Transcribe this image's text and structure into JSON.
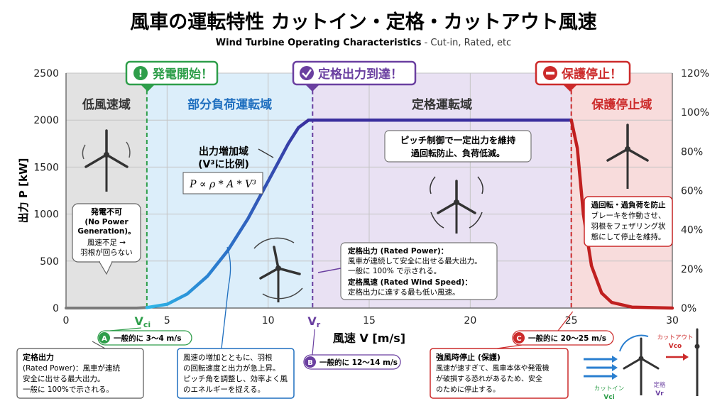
{
  "header": {
    "title": "風車の運転特性 カットイン・定格・カットアウト風速",
    "subtitle_bold": "Wind Turbine Operating Characteristics",
    "subtitle_rest": " - Cut-in, Rated, etc"
  },
  "chart_data": {
    "type": "line",
    "xlabel": "風速 V [m/s]",
    "ylabel": "出力 P [kW]",
    "xlim": [
      0,
      30
    ],
    "ylim": [
      0,
      2500
    ],
    "y2lim": [
      0,
      120
    ],
    "x_ticks": [
      "0",
      "5",
      "10",
      "15",
      "20",
      "25",
      "30"
    ],
    "x_tick_values": [
      0,
      5,
      10,
      15,
      20,
      25,
      30
    ],
    "y_ticks": [
      "0",
      "500",
      "1000",
      "1500",
      "2000",
      "2500"
    ],
    "y_tick_values": [
      0,
      500,
      1000,
      1500,
      2000,
      2500
    ],
    "y2_ticks": [
      "0%",
      "20%",
      "40%",
      "60%",
      "80%",
      "100%",
      "120%"
    ],
    "y2_tick_values": [
      0,
      20,
      40,
      60,
      80,
      100,
      120
    ],
    "grid": true,
    "power_curve": {
      "x": [
        0,
        3.5,
        4,
        5,
        6,
        7,
        8,
        9,
        10,
        11,
        11.5,
        12,
        13,
        15,
        20,
        25,
        25.3,
        25.6,
        26,
        26.5,
        27,
        28,
        30
      ],
      "y": [
        0,
        0,
        5,
        40,
        150,
        340,
        610,
        950,
        1350,
        1750,
        1920,
        2000,
        2000,
        2000,
        2000,
        2000,
        1700,
        1000,
        450,
        160,
        60,
        10,
        0
      ]
    },
    "vci": 4,
    "vr": 12.2,
    "vco": 25,
    "vci_label": "Vci",
    "vr_label": "Vr",
    "regions": [
      {
        "label": "低風速域",
        "from": 0,
        "to": 4
      },
      {
        "label": "部分負荷運転域",
        "from": 4,
        "to": 12.2
      },
      {
        "label": "定格運転域",
        "from": 12.2,
        "to": 25
      },
      {
        "label": "保護停止域",
        "from": 25,
        "to": 30
      }
    ]
  },
  "colors": {
    "region_low": "#e2e2e2",
    "region_partial": "#dceefa",
    "region_rated": "#e9e1f3",
    "region_stop": "#f8dcdc",
    "green": "#2e9e4a",
    "purple": "#6a3fa0",
    "red": "#cc2b2b",
    "blue": "#1f6fbf",
    "curve_start": "#2fb8e8",
    "curve_end": "#3a2f9e"
  },
  "flags": {
    "start": "発電開始！",
    "rated": "定格出力到達！",
    "stop": "保護停止！"
  },
  "annotations": {
    "increase_label_1": "出力増加域",
    "increase_label_2": "(V³に比例)",
    "formula": "P ∝ ρ * A * V³",
    "pitch_1": "ピッチ制御で一定出力を維持",
    "pitch_2": "過回転防止、負荷低減。",
    "no_gen_1": "発電不可",
    "no_gen_2": "(No Power",
    "no_gen_3": "Generation)。",
    "no_gen_4": "風速不足 →",
    "no_gen_5": "羽根が回らない",
    "rated_def_1": "定格出力 (Rated Power)：",
    "rated_def_2": "風車が連続して安全に出せる最大出力。",
    "rated_def_3": "一般に 100% で示される。",
    "rated_def_4": "定格風速 (Rated Wind Speed)：",
    "rated_def_5": "定格出力に達する最も低い風速。",
    "stop_desc_1": "過回転・過負荷を防止",
    "stop_desc_2": "ブレーキを作動させ、",
    "stop_desc_3": "羽根をフェザリング状",
    "stop_desc_4": "態にして停止を維持。"
  },
  "badges": {
    "a_letter": "A",
    "a_text": "一般的に 3〜4 m/s",
    "b_letter": "B",
    "b_text": "一般的に 12〜14 m/s",
    "c_letter": "C",
    "c_text": "一般的に 20〜25 m/s"
  },
  "bottom_boxes": {
    "box1": [
      "定格出力",
      "(Rated Power)：風車が連続",
      "安全に出せる最大出力。",
      "一般に 100%で示される。"
    ],
    "box2": [
      "風速の増加とともに、羽根",
      "の回転速度と出力が急上昇。",
      "ピッチ角を調整し、効率よく風",
      "のエネルギーを捉える。"
    ],
    "box3": [
      "強風時停止 (保護)",
      "風速が速すぎて、風車本体や発電機",
      "が破損する恐れがあるため、安全",
      "のために停止する。"
    ]
  },
  "inset": {
    "cutout_1": "カットアウト",
    "cutout_2": "Vco",
    "cutin_1": "カットイン",
    "cutin_2": "Vci",
    "rated_1": "定格",
    "rated_2": "Vr"
  }
}
